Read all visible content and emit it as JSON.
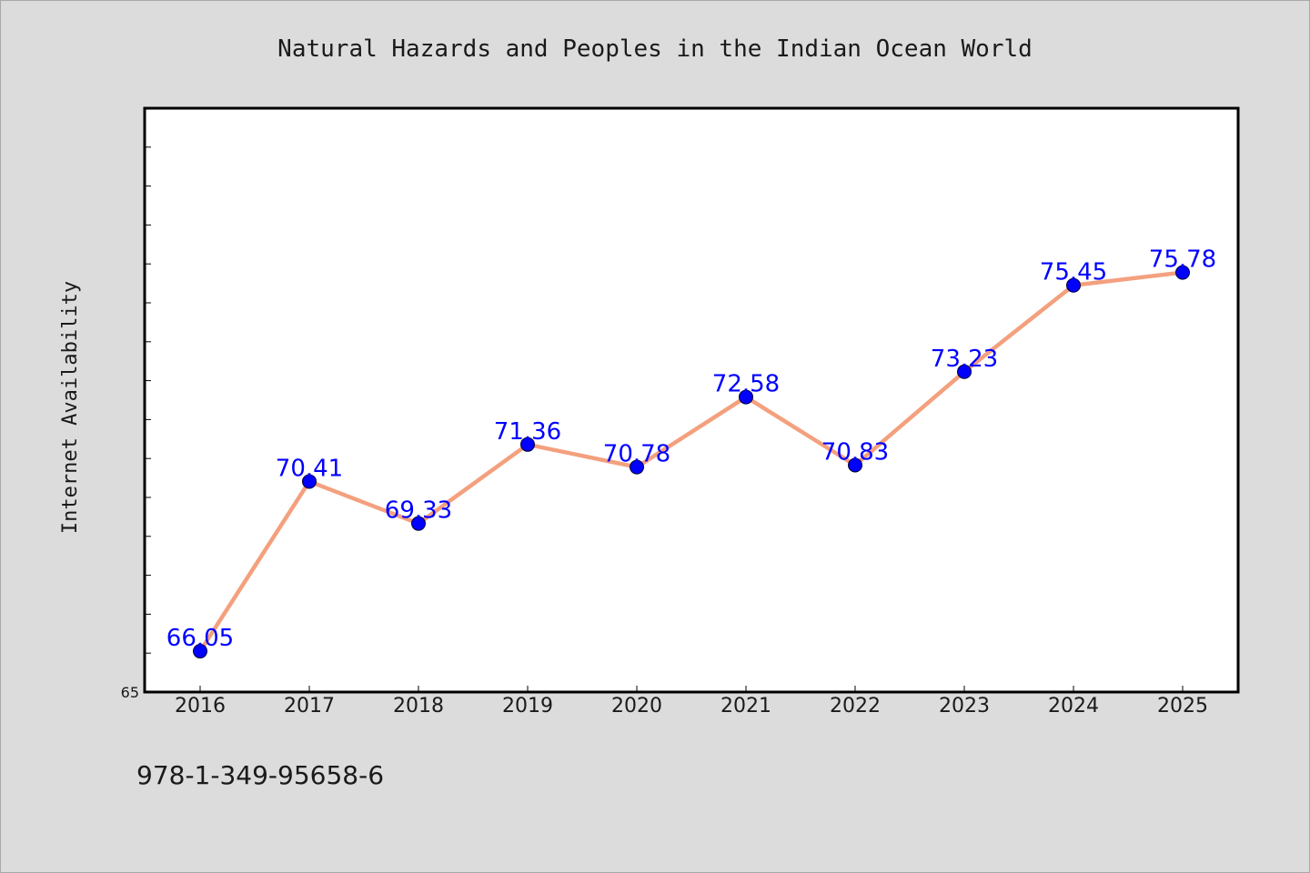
{
  "chart_data": {
    "type": "line",
    "title": "Natural Hazards and Peoples in the Indian Ocean World",
    "xlabel": "",
    "ylabel": "Internet Availability",
    "categories": [
      "2016",
      "2017",
      "2018",
      "2019",
      "2020",
      "2021",
      "2022",
      "2023",
      "2024",
      "2025"
    ],
    "series": [
      {
        "values": [
          66.05,
          70.41,
          69.33,
          71.36,
          70.78,
          72.58,
          70.83,
          73.23,
          75.45,
          75.78
        ],
        "labels": [
          "66.05",
          "70.41",
          "69.33",
          "71.36",
          "70.78",
          "72.58",
          "70.83",
          "73.23",
          "75.45",
          "75.78"
        ]
      }
    ],
    "ylim": [
      65,
      80
    ],
    "yticks": [
      "65"
    ],
    "grid": false,
    "legend": "none",
    "colors": {
      "line": "#f4a07e",
      "marker": "#0000ff",
      "label": "#0000ff",
      "plot_bg": "#ffffff",
      "page_bg": "#dcdcdc"
    }
  },
  "footer": {
    "isbn": "978-1-349-95658-6"
  }
}
